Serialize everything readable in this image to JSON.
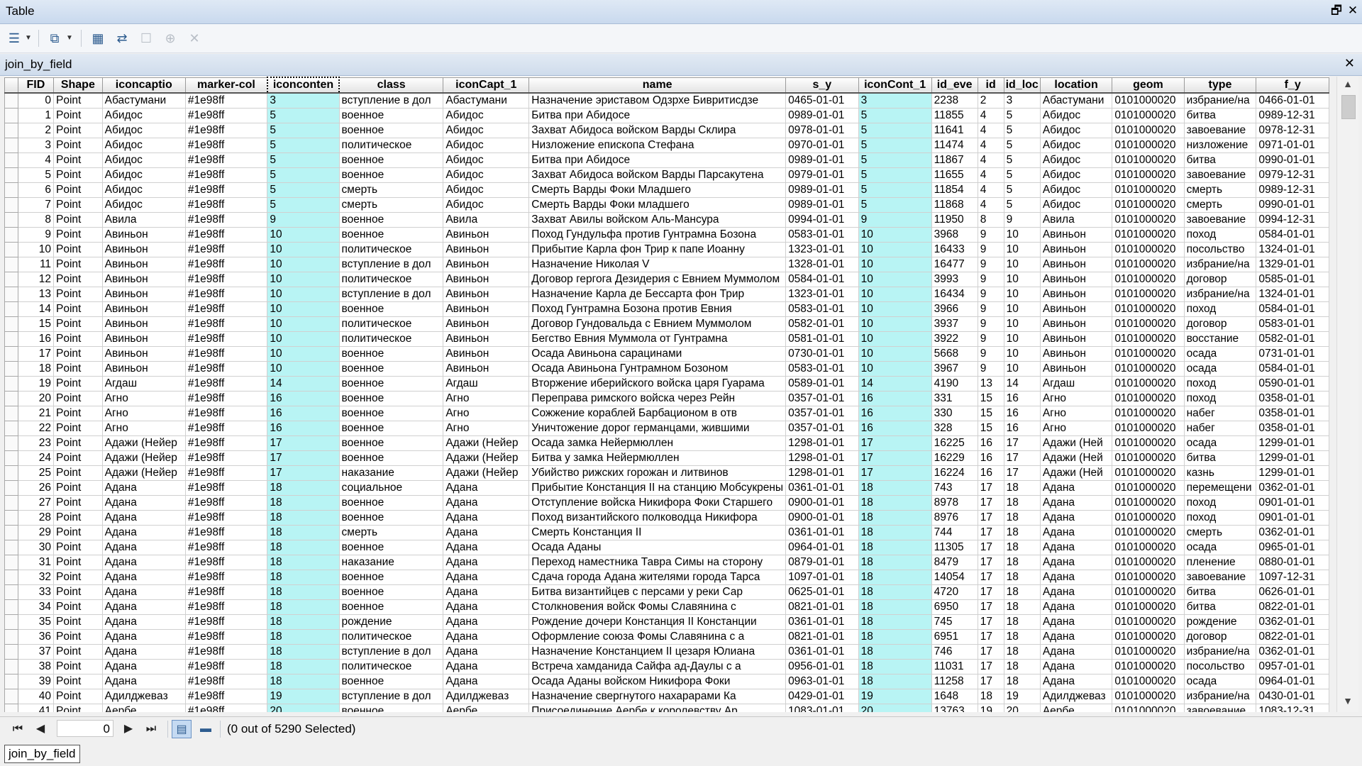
{
  "window": {
    "title": "Table",
    "restore_glyph": "🗗",
    "close_glyph": "✕"
  },
  "toolbar": {
    "icons": [
      {
        "name": "table-options-icon",
        "glyph": "☰",
        "dropdown": true,
        "enabled": true
      },
      {
        "name": "related-tables-icon",
        "glyph": "⧉",
        "dropdown": true,
        "enabled": true
      },
      {
        "name": "select-by-attributes-icon",
        "glyph": "▦",
        "dropdown": false,
        "enabled": true
      },
      {
        "name": "switch-selection-icon",
        "glyph": "⇄",
        "dropdown": false,
        "enabled": true
      },
      {
        "name": "clear-selection-icon",
        "glyph": "☐",
        "dropdown": false,
        "enabled": false
      },
      {
        "name": "zoom-to-selected-icon",
        "glyph": "⊕",
        "dropdown": false,
        "enabled": false
      },
      {
        "name": "delete-selected-icon",
        "glyph": "✕",
        "dropdown": false,
        "enabled": false
      }
    ]
  },
  "table_tab": {
    "name": "join_by_field",
    "close_glyph": "✕"
  },
  "grid": {
    "highlight_color": "#b8f4f4",
    "active_column": "iconconten",
    "columns": [
      {
        "key": "fid",
        "label": "FID",
        "align": "right"
      },
      {
        "key": "shape",
        "label": "Shape"
      },
      {
        "key": "iconcaptio",
        "label": "iconcaptio"
      },
      {
        "key": "marker",
        "label": "marker-col"
      },
      {
        "key": "iconconten",
        "label": "iconconten",
        "highlight": true
      },
      {
        "key": "class",
        "label": "class"
      },
      {
        "key": "iconcapt1",
        "label": "iconCapt_1"
      },
      {
        "key": "name",
        "label": "name"
      },
      {
        "key": "sy",
        "label": "s_y"
      },
      {
        "key": "iconcont1",
        "label": "iconCont_1",
        "highlight": true
      },
      {
        "key": "ideve",
        "label": "id_eve"
      },
      {
        "key": "id",
        "label": "id"
      },
      {
        "key": "idloc",
        "label": "id_loc"
      },
      {
        "key": "location",
        "label": "location"
      },
      {
        "key": "geom",
        "label": "geom"
      },
      {
        "key": "type",
        "label": "type"
      },
      {
        "key": "fy",
        "label": "f_y"
      }
    ],
    "rows": [
      [
        "0",
        "Point",
        "Абастумани",
        "#1e98ff",
        "3",
        "вступление в дол",
        "Абастумани",
        "Назначение эриставом Одзрхе Бивритисдзе",
        "0465-01-01",
        "3",
        "2238",
        "2",
        "3",
        "Абастумани",
        "0101000020",
        "избрание/на",
        "0466-01-01"
      ],
      [
        "1",
        "Point",
        "Абидос",
        "#1e98ff",
        "5",
        "военное",
        "Абидос",
        "Битва при Абидосе",
        "0989-01-01",
        "5",
        "11855",
        "4",
        "5",
        "Абидос",
        "0101000020",
        "битва",
        "0989-12-31"
      ],
      [
        "2",
        "Point",
        "Абидос",
        "#1e98ff",
        "5",
        "военное",
        "Абидос",
        "Захват Абидоса войском Варды Склира",
        "0978-01-01",
        "5",
        "11641",
        "4",
        "5",
        "Абидос",
        "0101000020",
        "завоевание",
        "0978-12-31"
      ],
      [
        "3",
        "Point",
        "Абидос",
        "#1e98ff",
        "5",
        "политическое",
        "Абидос",
        "Низложение епископа Стефана",
        "0970-01-01",
        "5",
        "11474",
        "4",
        "5",
        "Абидос",
        "0101000020",
        "низложение",
        "0971-01-01"
      ],
      [
        "4",
        "Point",
        "Абидос",
        "#1e98ff",
        "5",
        "военное",
        "Абидос",
        "Битва при Абидосе",
        "0989-01-01",
        "5",
        "11867",
        "4",
        "5",
        "Абидос",
        "0101000020",
        "битва",
        "0990-01-01"
      ],
      [
        "5",
        "Point",
        "Абидос",
        "#1e98ff",
        "5",
        "военное",
        "Абидос",
        "Захват Абидоса войском Варды Парсакутена",
        "0979-01-01",
        "5",
        "11655",
        "4",
        "5",
        "Абидос",
        "0101000020",
        "завоевание",
        "0979-12-31"
      ],
      [
        "6",
        "Point",
        "Абидос",
        "#1e98ff",
        "5",
        "смерть",
        "Абидос",
        "Смерть Варды Фоки Младшего",
        "0989-01-01",
        "5",
        "11854",
        "4",
        "5",
        "Абидос",
        "0101000020",
        "смерть",
        "0989-12-31"
      ],
      [
        "7",
        "Point",
        "Абидос",
        "#1e98ff",
        "5",
        "смерть",
        "Абидос",
        "Смерть Варды Фоки младшего",
        "0989-01-01",
        "5",
        "11868",
        "4",
        "5",
        "Абидос",
        "0101000020",
        "смерть",
        "0990-01-01"
      ],
      [
        "8",
        "Point",
        "Авила",
        "#1e98ff",
        "9",
        "военное",
        "Авила",
        "Захват Авилы войском Аль-Мансура",
        "0994-01-01",
        "9",
        "11950",
        "8",
        "9",
        "Авила",
        "0101000020",
        "завоевание",
        "0994-12-31"
      ],
      [
        "9",
        "Point",
        "Авиньон",
        "#1e98ff",
        "10",
        "военное",
        "Авиньон",
        "Поход Гундульфа против Гунтрамна Бозона",
        "0583-01-01",
        "10",
        "3968",
        "9",
        "10",
        "Авиньон",
        "0101000020",
        "поход",
        "0584-01-01"
      ],
      [
        "10",
        "Point",
        "Авиньон",
        "#1e98ff",
        "10",
        "политическое",
        "Авиньон",
        "Прибытие Карла фон Трир к папе Иоанну",
        "1323-01-01",
        "10",
        "16433",
        "9",
        "10",
        "Авиньон",
        "0101000020",
        "посольство",
        "1324-01-01"
      ],
      [
        "11",
        "Point",
        "Авиньон",
        "#1e98ff",
        "10",
        "вступление в дол",
        "Авиньон",
        "Назначение Николая V",
        "1328-01-01",
        "10",
        "16477",
        "9",
        "10",
        "Авиньон",
        "0101000020",
        "избрание/на",
        "1329-01-01"
      ],
      [
        "12",
        "Point",
        "Авиньон",
        "#1e98ff",
        "10",
        "политическое",
        "Авиньон",
        "Договор гергога Дезидерия с Евнием Муммолом",
        "0584-01-01",
        "10",
        "3993",
        "9",
        "10",
        "Авиньон",
        "0101000020",
        "договор",
        "0585-01-01"
      ],
      [
        "13",
        "Point",
        "Авиньон",
        "#1e98ff",
        "10",
        "вступление в дол",
        "Авиньон",
        "Назначение Карла де Бессарта фон Трир",
        "1323-01-01",
        "10",
        "16434",
        "9",
        "10",
        "Авиньон",
        "0101000020",
        "избрание/на",
        "1324-01-01"
      ],
      [
        "14",
        "Point",
        "Авиньон",
        "#1e98ff",
        "10",
        "военное",
        "Авиньон",
        "Поход Гунтрамна Бозона против Евния",
        "0583-01-01",
        "10",
        "3966",
        "9",
        "10",
        "Авиньон",
        "0101000020",
        "поход",
        "0584-01-01"
      ],
      [
        "15",
        "Point",
        "Авиньон",
        "#1e98ff",
        "10",
        "политическое",
        "Авиньон",
        "Договор Гундовальда с Евнием Муммолом",
        "0582-01-01",
        "10",
        "3937",
        "9",
        "10",
        "Авиньон",
        "0101000020",
        "договор",
        "0583-01-01"
      ],
      [
        "16",
        "Point",
        "Авиньон",
        "#1e98ff",
        "10",
        "политическое",
        "Авиньон",
        "Бегство Евния Муммола от Гунтрамна",
        "0581-01-01",
        "10",
        "3922",
        "9",
        "10",
        "Авиньон",
        "0101000020",
        "восстание",
        "0582-01-01"
      ],
      [
        "17",
        "Point",
        "Авиньон",
        "#1e98ff",
        "10",
        "военное",
        "Авиньон",
        "Осада Авиньона сарацинами",
        "0730-01-01",
        "10",
        "5668",
        "9",
        "10",
        "Авиньон",
        "0101000020",
        "осада",
        "0731-01-01"
      ],
      [
        "18",
        "Point",
        "Авиньон",
        "#1e98ff",
        "10",
        "военное",
        "Авиньон",
        "Осада Авиньона Гунтрамном Бозоном",
        "0583-01-01",
        "10",
        "3967",
        "9",
        "10",
        "Авиньон",
        "0101000020",
        "осада",
        "0584-01-01"
      ],
      [
        "19",
        "Point",
        "Агдаш",
        "#1e98ff",
        "14",
        "военное",
        "Агдаш",
        "Вторжение иберийского войска царя Гуарама",
        "0589-01-01",
        "14",
        "4190",
        "13",
        "14",
        "Агдаш",
        "0101000020",
        "поход",
        "0590-01-01"
      ],
      [
        "20",
        "Point",
        "Агно",
        "#1e98ff",
        "16",
        "военное",
        "Агно",
        "Переправа римского войска через Рейн",
        "0357-01-01",
        "16",
        "331",
        "15",
        "16",
        "Агно",
        "0101000020",
        "поход",
        "0358-01-01"
      ],
      [
        "21",
        "Point",
        "Агно",
        "#1e98ff",
        "16",
        "военное",
        "Агно",
        "Сожжение кораблей Барбационом в отв",
        "0357-01-01",
        "16",
        "330",
        "15",
        "16",
        "Агно",
        "0101000020",
        "набег",
        "0358-01-01"
      ],
      [
        "22",
        "Point",
        "Агно",
        "#1e98ff",
        "16",
        "военное",
        "Агно",
        "Уничтожение дорог германцами, жившими",
        "0357-01-01",
        "16",
        "328",
        "15",
        "16",
        "Агно",
        "0101000020",
        "набег",
        "0358-01-01"
      ],
      [
        "23",
        "Point",
        "Адажи (Нейер",
        "#1e98ff",
        "17",
        "военное",
        "Адажи (Нейер",
        "Осада замка Нейермюллен",
        "1298-01-01",
        "17",
        "16225",
        "16",
        "17",
        "Адажи (Ней",
        "0101000020",
        "осада",
        "1299-01-01"
      ],
      [
        "24",
        "Point",
        "Адажи (Нейер",
        "#1e98ff",
        "17",
        "военное",
        "Адажи (Нейер",
        "Битва у замка Нейермюллен",
        "1298-01-01",
        "17",
        "16229",
        "16",
        "17",
        "Адажи (Ней",
        "0101000020",
        "битва",
        "1299-01-01"
      ],
      [
        "25",
        "Point",
        "Адажи (Нейер",
        "#1e98ff",
        "17",
        "наказание",
        "Адажи (Нейер",
        "Убийство рижских горожан и литвинов",
        "1298-01-01",
        "17",
        "16224",
        "16",
        "17",
        "Адажи (Ней",
        "0101000020",
        "казнь",
        "1299-01-01"
      ],
      [
        "26",
        "Point",
        "Адана",
        "#1e98ff",
        "18",
        "социальное",
        "Адана",
        "Прибытие Констанция II на станцию Мобсукрены",
        "0361-01-01",
        "18",
        "743",
        "17",
        "18",
        "Адана",
        "0101000020",
        "перемещени",
        "0362-01-01"
      ],
      [
        "27",
        "Point",
        "Адана",
        "#1e98ff",
        "18",
        "военное",
        "Адана",
        "Отступление войска Никифора Фоки Старшего",
        "0900-01-01",
        "18",
        "8978",
        "17",
        "18",
        "Адана",
        "0101000020",
        "поход",
        "0901-01-01"
      ],
      [
        "28",
        "Point",
        "Адана",
        "#1e98ff",
        "18",
        "военное",
        "Адана",
        "Поход византийского полководца Никифора",
        "0900-01-01",
        "18",
        "8976",
        "17",
        "18",
        "Адана",
        "0101000020",
        "поход",
        "0901-01-01"
      ],
      [
        "29",
        "Point",
        "Адана",
        "#1e98ff",
        "18",
        "смерть",
        "Адана",
        "Смерть Констанция II",
        "0361-01-01",
        "18",
        "744",
        "17",
        "18",
        "Адана",
        "0101000020",
        "смерть",
        "0362-01-01"
      ],
      [
        "30",
        "Point",
        "Адана",
        "#1e98ff",
        "18",
        "военное",
        "Адана",
        "Осада Аданы",
        "0964-01-01",
        "18",
        "11305",
        "17",
        "18",
        "Адана",
        "0101000020",
        "осада",
        "0965-01-01"
      ],
      [
        "31",
        "Point",
        "Адана",
        "#1e98ff",
        "18",
        "наказание",
        "Адана",
        "Переход наместника Тавра Симы на сторону",
        "0879-01-01",
        "18",
        "8479",
        "17",
        "18",
        "Адана",
        "0101000020",
        "пленение",
        "0880-01-01"
      ],
      [
        "32",
        "Point",
        "Адана",
        "#1e98ff",
        "18",
        "военное",
        "Адана",
        "Сдача города Адана жителями города Тарса",
        "1097-01-01",
        "18",
        "14054",
        "17",
        "18",
        "Адана",
        "0101000020",
        "завоевание",
        "1097-12-31"
      ],
      [
        "33",
        "Point",
        "Адана",
        "#1e98ff",
        "18",
        "военное",
        "Адана",
        "Битва византийцев с персами у реки Сар",
        "0625-01-01",
        "18",
        "4720",
        "17",
        "18",
        "Адана",
        "0101000020",
        "битва",
        "0626-01-01"
      ],
      [
        "34",
        "Point",
        "Адана",
        "#1e98ff",
        "18",
        "военное",
        "Адана",
        "Столкновения войск Фомы Славянина с",
        "0821-01-01",
        "18",
        "6950",
        "17",
        "18",
        "Адана",
        "0101000020",
        "битва",
        "0822-01-01"
      ],
      [
        "35",
        "Point",
        "Адана",
        "#1e98ff",
        "18",
        "рождение",
        "Адана",
        "Рождение дочери Констанция II Констанции",
        "0361-01-01",
        "18",
        "745",
        "17",
        "18",
        "Адана",
        "0101000020",
        "рождение",
        "0362-01-01"
      ],
      [
        "36",
        "Point",
        "Адана",
        "#1e98ff",
        "18",
        "политическое",
        "Адана",
        "Оформление союза Фомы Славянина с а",
        "0821-01-01",
        "18",
        "6951",
        "17",
        "18",
        "Адана",
        "0101000020",
        "договор",
        "0822-01-01"
      ],
      [
        "37",
        "Point",
        "Адана",
        "#1e98ff",
        "18",
        "вступление в дол",
        "Адана",
        "Назначение Констанцием II цезаря Юлиана",
        "0361-01-01",
        "18",
        "746",
        "17",
        "18",
        "Адана",
        "0101000020",
        "избрание/на",
        "0362-01-01"
      ],
      [
        "38",
        "Point",
        "Адана",
        "#1e98ff",
        "18",
        "политическое",
        "Адана",
        "Встреча хамданида Сайфа ад-Даулы с а",
        "0956-01-01",
        "18",
        "11031",
        "17",
        "18",
        "Адана",
        "0101000020",
        "посольство",
        "0957-01-01"
      ],
      [
        "39",
        "Point",
        "Адана",
        "#1e98ff",
        "18",
        "военное",
        "Адана",
        "Осада Аданы войском Никифора Фоки",
        "0963-01-01",
        "18",
        "11258",
        "17",
        "18",
        "Адана",
        "0101000020",
        "осада",
        "0964-01-01"
      ],
      [
        "40",
        "Point",
        "Адилджевaз",
        "#1e98ff",
        "19",
        "вступление в дол",
        "Адилджевaз",
        "Назначение свергнутого нахарарами Ка",
        "0429-01-01",
        "19",
        "1648",
        "18",
        "19",
        "Адилджеваз",
        "0101000020",
        "избрание/на",
        "0430-01-01"
      ],
      [
        "41",
        "Point",
        "Аербе",
        "#1e98ff",
        "20",
        "военное",
        "Аербе",
        "Присоединение Аербе к королевству Ар",
        "1083-01-01",
        "20",
        "13763",
        "19",
        "20",
        "Аербе",
        "0101000020",
        "завоевание",
        "1083-12-31"
      ]
    ]
  },
  "navigation": {
    "first_glyph": "⏮",
    "prev_glyph": "◀",
    "current_record": "0",
    "next_glyph": "▶",
    "last_glyph": "⏭",
    "all_records_glyph": "▤",
    "selected_records_glyph": "▬",
    "selection_status": "(0 out of 5290 Selected)"
  },
  "bottom_tabs": [
    {
      "label": "join_by_field",
      "active": true
    }
  ]
}
